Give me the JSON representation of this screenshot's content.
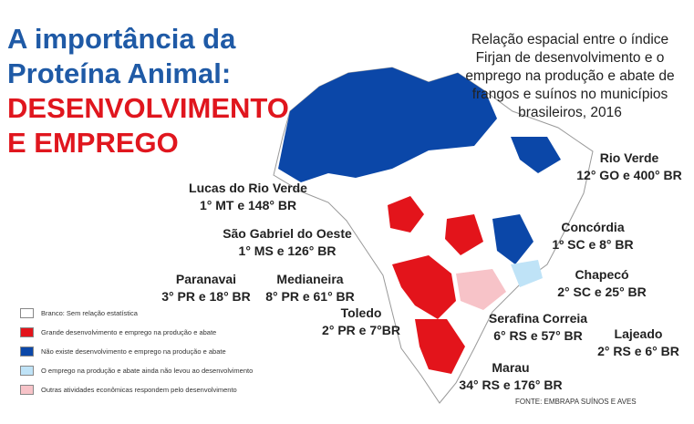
{
  "title": {
    "lines": [
      "A importância da",
      "Proteína Animal:",
      "DESENVOLVIMENTO",
      "E EMPREGO"
    ]
  },
  "subtitle": {
    "lines": [
      "Relação espacial entre o índice",
      "Firjan de desenvolvimento e o",
      "emprego na produção e abate de",
      "frangos e suínos no municípios",
      "brasileiros, 2016"
    ]
  },
  "cities": [
    {
      "name": "Lucas do Rio Verde",
      "rank": "1° MT e 148° BR"
    },
    {
      "name": "São Gabriel do Oeste",
      "rank": "1° MS e 126° BR"
    },
    {
      "name": "Paranavai",
      "rank": "3° PR e 18° BR"
    },
    {
      "name": "Medianeira",
      "rank": "8° PR e 61° BR"
    },
    {
      "name": "Toledo",
      "rank": "2° PR e 7°BR"
    },
    {
      "name": "Rio Verde",
      "rank": "12° GO e 400° BR"
    },
    {
      "name": "Concórdia",
      "rank": "1º SC e 8° BR"
    },
    {
      "name": "Chapecó",
      "rank": "2° SC e 25° BR"
    },
    {
      "name": "Serafina Correia",
      "rank": "6° RS e 57° BR"
    },
    {
      "name": "Lajeado",
      "rank": "2° RS e 6° BR"
    },
    {
      "name": "Marau",
      "rank": "34° RS e 176° BR"
    }
  ],
  "legend": {
    "items": [
      {
        "label": "Branco: Sem relação estatística",
        "color": "#ffffff"
      },
      {
        "label": "Grande desenvolvimento e emprego na produção e abate",
        "color": "#e3141b"
      },
      {
        "label": "Não existe desenvolvimento e emprego na produção e abate",
        "color": "#0b47a8"
      },
      {
        "label": "O emprego na produção e abate ainda não levou ao desenvolvimento",
        "color": "#bfe3f7"
      },
      {
        "label": "Outras atividades econômicas respondem pelo desenvolvimento",
        "color": "#f7c3c8"
      }
    ]
  },
  "source": "FONTE: EMBRAPA SUÍNOS E AVES"
}
